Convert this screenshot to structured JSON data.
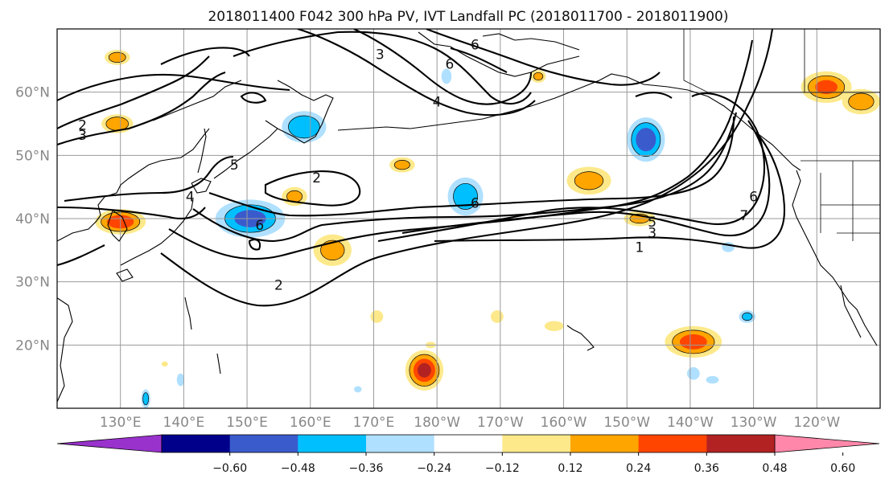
{
  "chart_data": {
    "type": "map-contour",
    "title": "2018011400 F042 300 hPa PV, IVT Landfall PC (2018011700 - 2018011900)",
    "lon_range": [
      120,
      250
    ],
    "lat_range": [
      10,
      70
    ],
    "x_ticks": [
      {
        "lon": 130,
        "label": "130°E"
      },
      {
        "lon": 140,
        "label": "140°E"
      },
      {
        "lon": 150,
        "label": "150°E"
      },
      {
        "lon": 160,
        "label": "160°E"
      },
      {
        "lon": 170,
        "label": "170°E"
      },
      {
        "lon": 180,
        "label": "180°W"
      },
      {
        "lon": 190,
        "label": "170°W"
      },
      {
        "lon": 200,
        "label": "160°W"
      },
      {
        "lon": 210,
        "label": "150°W"
      },
      {
        "lon": 220,
        "label": "140°W"
      },
      {
        "lon": 230,
        "label": "130°W"
      },
      {
        "lon": 240,
        "label": "120°W"
      }
    ],
    "y_ticks": [
      {
        "lat": 20,
        "label": "20°N"
      },
      {
        "lat": 30,
        "label": "30°N"
      },
      {
        "lat": 40,
        "label": "40°N"
      },
      {
        "lat": 50,
        "label": "50°N"
      },
      {
        "lat": 60,
        "label": "60°N"
      }
    ],
    "grid": true,
    "colorbar": {
      "orientation": "horizontal",
      "extend": "both",
      "levels": [
        -0.72,
        -0.6,
        -0.48,
        -0.36,
        -0.24,
        -0.12,
        0.12,
        0.24,
        0.36,
        0.48,
        0.6,
        0.72
      ],
      "colors": [
        "#9932cc",
        "#00008b",
        "#3a5bcc",
        "#00bfff",
        "#b0e0ff",
        "#ffffff",
        "#fde98a",
        "#ffa500",
        "#ff4500",
        "#b22222",
        "#ff88aa"
      ],
      "tick_labels": [
        "−0.60",
        "−0.48",
        "−0.36",
        "−0.24",
        "−0.12",
        "0.12",
        "0.24",
        "0.36",
        "0.48",
        "0.60"
      ]
    },
    "pv_contour_labels": [
      {
        "text": "5",
        "lon": 148,
        "lat": 48.5
      },
      {
        "text": "2",
        "lon": 161,
        "lat": 46.5
      },
      {
        "text": "2",
        "lon": 155,
        "lat": 29.5
      },
      {
        "text": "2",
        "lon": 124,
        "lat": 54.8
      },
      {
        "text": "3",
        "lon": 124,
        "lat": 53.2
      },
      {
        "text": "4",
        "lon": 141,
        "lat": 43.5
      },
      {
        "text": "6",
        "lon": 152,
        "lat": 39
      },
      {
        "text": "6",
        "lon": 186,
        "lat": 42.5
      },
      {
        "text": "3",
        "lon": 171,
        "lat": 66
      },
      {
        "text": "6",
        "lon": 186,
        "lat": 67.5
      },
      {
        "text": "6",
        "lon": 182,
        "lat": 64.5
      },
      {
        "text": "4",
        "lon": 180,
        "lat": 58.5
      },
      {
        "text": "5",
        "lon": 214,
        "lat": 39.5
      },
      {
        "text": "3",
        "lon": 214,
        "lat": 37.8
      },
      {
        "text": "1",
        "lon": 212,
        "lat": 35.5
      },
      {
        "text": "6",
        "lon": 230,
        "lat": 43.5
      },
      {
        "text": "7",
        "lon": 228.5,
        "lat": 40.5
      }
    ],
    "ivt_pc_blobs": [
      {
        "lon": 130,
        "lat": 39.5,
        "rx": 4,
        "ry": 2,
        "value": 0.45
      },
      {
        "lon": 129.5,
        "lat": 65.5,
        "rx": 2,
        "ry": 1.2,
        "value": 0.3
      },
      {
        "lon": 129.5,
        "lat": 55,
        "rx": 2.5,
        "ry": 1.5,
        "value": 0.35
      },
      {
        "lon": 150.5,
        "lat": 40,
        "rx": 5.5,
        "ry": 3,
        "value": -0.38
      },
      {
        "lon": 159,
        "lat": 54.5,
        "rx": 3.5,
        "ry": 2.5,
        "value": -0.35
      },
      {
        "lon": 157.5,
        "lat": 43.5,
        "rx": 2,
        "ry": 1.5,
        "value": 0.25
      },
      {
        "lon": 163.5,
        "lat": 35,
        "rx": 3,
        "ry": 2.5,
        "value": 0.26
      },
      {
        "lon": 174.5,
        "lat": 48.5,
        "rx": 2,
        "ry": 1.2,
        "value": 0.25
      },
      {
        "lon": 184.5,
        "lat": 43.5,
        "rx": 2.8,
        "ry": 3,
        "value": -0.32
      },
      {
        "lon": 181.5,
        "lat": 62.5,
        "rx": 0.8,
        "ry": 1.2,
        "value": -0.2
      },
      {
        "lon": 204,
        "lat": 46,
        "rx": 3.5,
        "ry": 2.2,
        "value": 0.28
      },
      {
        "lon": 213,
        "lat": 52.5,
        "rx": 3,
        "ry": 3.5,
        "value": -0.45
      },
      {
        "lon": 212,
        "lat": 40,
        "rx": 2.5,
        "ry": 1.2,
        "value": 0.25
      },
      {
        "lon": 196,
        "lat": 62.5,
        "rx": 1.2,
        "ry": 1,
        "value": 0.25
      },
      {
        "lon": 241.5,
        "lat": 60.8,
        "rx": 4,
        "ry": 2.5,
        "value": 0.37
      },
      {
        "lon": 247,
        "lat": 58.5,
        "rx": 3,
        "ry": 2,
        "value": 0.3
      },
      {
        "lon": 178,
        "lat": 16,
        "rx": 3,
        "ry": 3.2,
        "value": 0.5
      },
      {
        "lon": 220.5,
        "lat": 20.5,
        "rx": 4.5,
        "ry": 2.5,
        "value": 0.4
      },
      {
        "lon": 170.5,
        "lat": 24.5,
        "rx": 1,
        "ry": 1,
        "value": 0.22
      },
      {
        "lon": 189.5,
        "lat": 24.5,
        "rx": 1,
        "ry": 1,
        "value": 0.22
      },
      {
        "lon": 198.5,
        "lat": 23,
        "rx": 1.5,
        "ry": 0.8,
        "value": 0.2
      },
      {
        "lon": 229,
        "lat": 24.5,
        "rx": 1.3,
        "ry": 1,
        "value": -0.25
      },
      {
        "lon": 220.5,
        "lat": 15.5,
        "rx": 1,
        "ry": 1,
        "value": -0.22
      },
      {
        "lon": 223.5,
        "lat": 14.5,
        "rx": 1,
        "ry": 0.6,
        "value": -0.22
      },
      {
        "lon": 139.5,
        "lat": 14.5,
        "rx": 0.6,
        "ry": 1,
        "value": -0.2
      },
      {
        "lon": 134,
        "lat": 11.5,
        "rx": 0.7,
        "ry": 1.5,
        "value": -0.28
      },
      {
        "lon": 226,
        "lat": 35.5,
        "rx": 1,
        "ry": 0.8,
        "value": -0.2
      },
      {
        "lon": 179,
        "lat": 20,
        "rx": 0.8,
        "ry": 0.5,
        "value": 0.2
      },
      {
        "lon": 137,
        "lat": 17,
        "rx": 0.5,
        "ry": 0.4,
        "value": 0.18
      },
      {
        "lon": 167.5,
        "lat": 13,
        "rx": 0.6,
        "ry": 0.5,
        "value": -0.2
      }
    ]
  }
}
